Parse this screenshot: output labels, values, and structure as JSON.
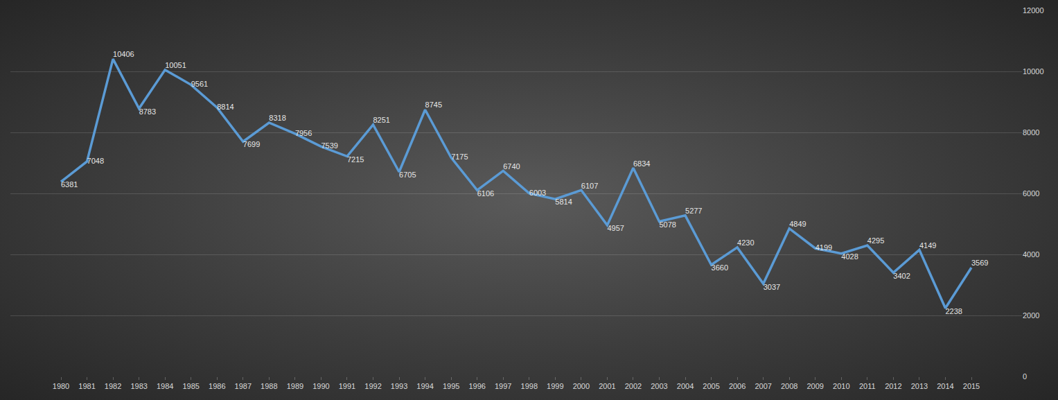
{
  "chart_data": {
    "type": "line",
    "categories": [
      "1980",
      "1981",
      "1982",
      "1983",
      "1984",
      "1985",
      "1986",
      "1987",
      "1988",
      "1989",
      "1990",
      "1991",
      "1992",
      "1993",
      "1994",
      "1995",
      "1996",
      "1997",
      "1998",
      "1999",
      "2000",
      "2001",
      "2002",
      "2003",
      "2004",
      "2005",
      "2006",
      "2007",
      "2008",
      "2009",
      "2010",
      "2011",
      "2012",
      "2013",
      "2014",
      "2015"
    ],
    "values": [
      6381,
      7048,
      10406,
      8783,
      10051,
      9561,
      8814,
      7699,
      8318,
      7956,
      7539,
      7215,
      8251,
      6705,
      8745,
      7175,
      6106,
      6740,
      6003,
      5814,
      6107,
      4957,
      6834,
      5078,
      5277,
      3660,
      4230,
      3037,
      4849,
      4199,
      4028,
      4295,
      3402,
      4149,
      2238,
      3569
    ],
    "color": "#5b9bd5",
    "ylim": [
      0,
      12000
    ],
    "yticks": [
      0,
      2000,
      4000,
      6000,
      8000,
      10000,
      12000
    ],
    "grid": true,
    "data_labels": true
  }
}
